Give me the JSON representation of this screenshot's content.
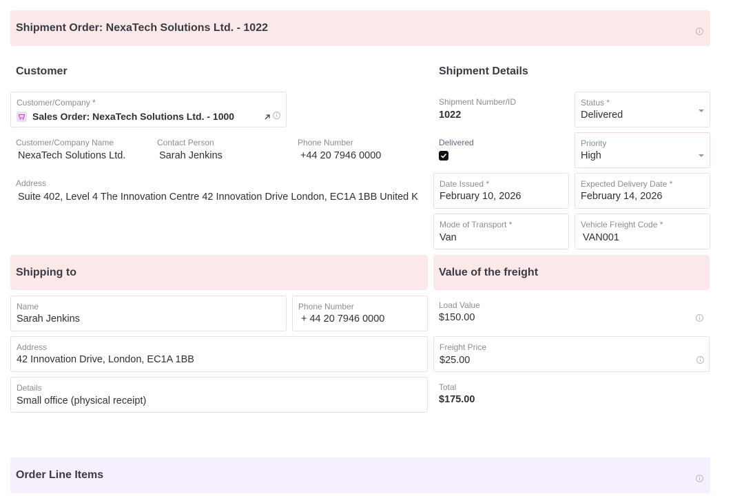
{
  "header": {
    "title": "Shipment Order:  NexaTech Solutions Ltd. - 1022"
  },
  "customer": {
    "heading": "Customer",
    "company_label": "Customer/Company",
    "company_value": "Sales Order: NexaTech Solutions Ltd. - 1000",
    "name_label": "Customer/Company Name",
    "name_value": "NexaTech Solutions Ltd.",
    "contact_label": "Contact Person",
    "contact_value": "Sarah Jenkins",
    "phone_label": "Phone Number",
    "phone_value": "+44 20 7946 0000",
    "address_label": "Address",
    "address_value": "Suite 402, Level 4 The Innovation Centre 42 Innovation Drive London, EC1A 1BB United K"
  },
  "shipment": {
    "heading": "Shipment Details",
    "number_label": "Shipment Number/ID",
    "number_value": "1022",
    "status_label": "Status",
    "status_value": "Delivered",
    "delivered_label": "Delivered",
    "delivered_checked": true,
    "priority_label": "Priority",
    "priority_value": "High",
    "date_issued_label": "Date Issued",
    "date_issued_value": "February 10, 2026",
    "expected_label": "Expected Delivery Date",
    "expected_value": "February 14, 2026",
    "transport_label": "Mode of Transport",
    "transport_value": "Van",
    "vehicle_label": "Vehicle Freight Code",
    "vehicle_value": "VAN001"
  },
  "shipping_to": {
    "heading": "Shipping to",
    "name_label": "Name",
    "name_value": "Sarah Jenkins",
    "phone_label": "Phone Number",
    "phone_value": "+ 44 20 7946 0000",
    "address_label": "Address",
    "address_value": "42 Innovation Drive, London, EC1A 1BB",
    "details_label": "Details",
    "details_value": "Small office (physical receipt)"
  },
  "freight": {
    "heading": "Value of the freight",
    "load_label": "Load Value",
    "load_value": "$150.00",
    "price_label": "Freight Price",
    "price_value": "$25.00",
    "total_label": "Total",
    "total_value": "$175.00"
  },
  "line_items": {
    "heading": "Order Line Items"
  },
  "required_mark": "*",
  "colors": {
    "section_pink": "#fbe9e9",
    "section_lavender": "#f6effd",
    "delivered_blue": "#afc8ec",
    "load_mint": "#f2faf6"
  }
}
